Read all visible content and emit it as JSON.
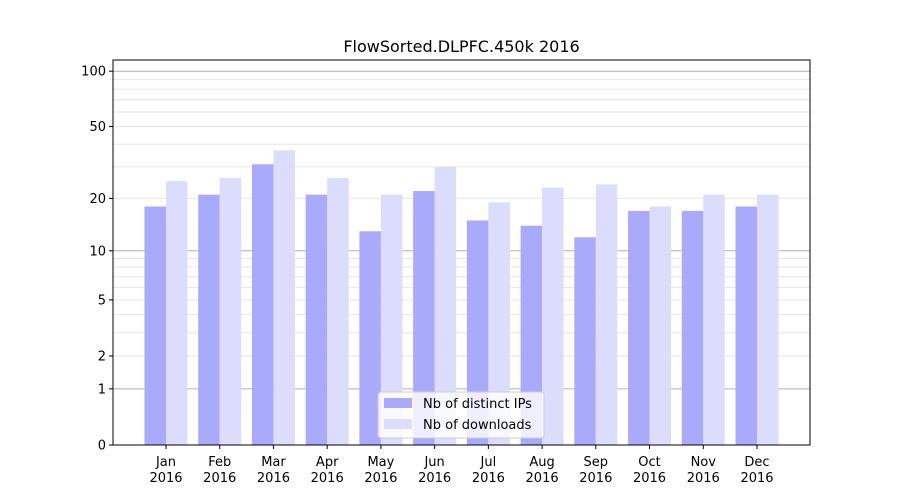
{
  "chart_data": {
    "type": "bar",
    "title": "FlowSorted.DLPFC.450k 2016",
    "xlabel": "",
    "ylabel": "",
    "yscale": "symlog",
    "ylim": [
      0,
      115
    ],
    "yticks": [
      0,
      1,
      2,
      5,
      10,
      20,
      50,
      100
    ],
    "ytick_labels": [
      "0",
      "1",
      "2",
      "5",
      "10",
      "20",
      "50",
      "100"
    ],
    "grid": true,
    "legend_position": "bottom-center",
    "categories": [
      [
        "Jan",
        "2016"
      ],
      [
        "Feb",
        "2016"
      ],
      [
        "Mar",
        "2016"
      ],
      [
        "Apr",
        "2016"
      ],
      [
        "May",
        "2016"
      ],
      [
        "Jun",
        "2016"
      ],
      [
        "Jul",
        "2016"
      ],
      [
        "Aug",
        "2016"
      ],
      [
        "Sep",
        "2016"
      ],
      [
        "Oct",
        "2016"
      ],
      [
        "Nov",
        "2016"
      ],
      [
        "Dec",
        "2016"
      ]
    ],
    "series": [
      {
        "name": "Nb of distinct IPs",
        "color": "#aaaafc",
        "values": [
          18,
          21,
          31,
          21,
          13,
          22,
          15,
          14,
          12,
          17,
          17,
          18
        ]
      },
      {
        "name": "Nb of downloads",
        "color": "#dcdcfd",
        "values": [
          25,
          26,
          37,
          26,
          21,
          30,
          19,
          23,
          24,
          18,
          21,
          21
        ]
      }
    ]
  }
}
